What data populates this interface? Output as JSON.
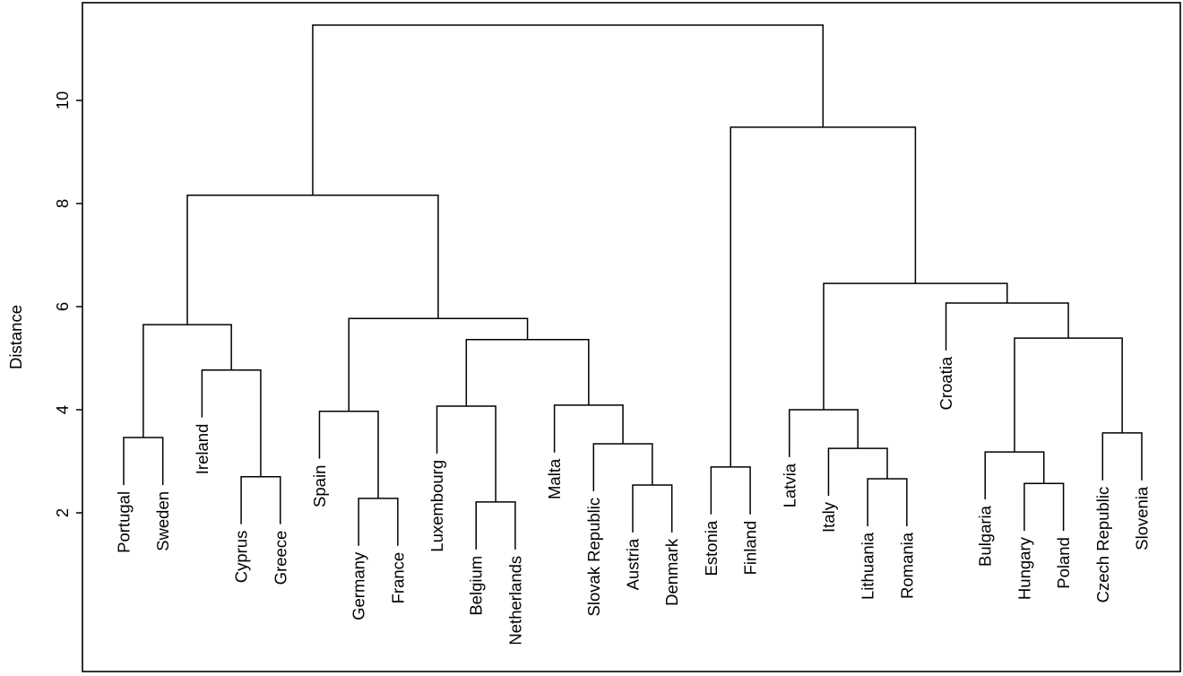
{
  "chart_data": {
    "type": "dendrogram",
    "title": "",
    "xlabel": "",
    "ylabel": "Distance",
    "yticks": [
      2,
      4,
      6,
      8,
      10
    ],
    "ylim": [
      0,
      11.9
    ],
    "grid": false,
    "line_color": "#000000",
    "background_color": "#ffffff",
    "hang": 0.92,
    "leaf_order": [
      "Portugal",
      "Sweden",
      "Ireland",
      "Cyprus",
      "Greece",
      "Spain",
      "Germany",
      "France",
      "Luxembourg",
      "Belgium",
      "Netherlands",
      "Malta",
      "Slovak Republic",
      "Austria",
      "Denmark",
      "Estonia",
      "Finland",
      "Latvia",
      "Italy",
      "Lithuania",
      "Romania",
      "Croatia",
      "Bulgaria",
      "Hungary",
      "Poland",
      "Czech Republic",
      "Slovenia"
    ],
    "tree": {
      "height": 11.46,
      "children": [
        {
          "height": 8.16,
          "children": [
            {
              "height": 5.65,
              "children": [
                {
                  "height": 3.46,
                  "children": [
                    {
                      "leaf": "Portugal"
                    },
                    {
                      "leaf": "Sweden"
                    }
                  ]
                },
                {
                  "height": 4.77,
                  "children": [
                    {
                      "leaf": "Ireland"
                    },
                    {
                      "height": 2.7,
                      "children": [
                        {
                          "leaf": "Cyprus"
                        },
                        {
                          "leaf": "Greece"
                        }
                      ]
                    }
                  ]
                }
              ]
            },
            {
              "height": 5.77,
              "children": [
                {
                  "height": 3.97,
                  "children": [
                    {
                      "leaf": "Spain"
                    },
                    {
                      "height": 2.28,
                      "children": [
                        {
                          "leaf": "Germany"
                        },
                        {
                          "leaf": "France"
                        }
                      ]
                    }
                  ]
                },
                {
                  "height": 5.36,
                  "children": [
                    {
                      "height": 4.07,
                      "children": [
                        {
                          "leaf": "Luxembourg"
                        },
                        {
                          "height": 2.21,
                          "children": [
                            {
                              "leaf": "Belgium"
                            },
                            {
                              "leaf": "Netherlands"
                            }
                          ]
                        }
                      ]
                    },
                    {
                      "height": 4.09,
                      "children": [
                        {
                          "leaf": "Malta"
                        },
                        {
                          "height": 3.34,
                          "children": [
                            {
                              "leaf": "Slovak Republic"
                            },
                            {
                              "height": 2.54,
                              "children": [
                                {
                                  "leaf": "Austria"
                                },
                                {
                                  "leaf": "Denmark"
                                }
                              ]
                            }
                          ]
                        }
                      ]
                    }
                  ]
                }
              ]
            }
          ]
        },
        {
          "height": 9.48,
          "children": [
            {
              "height": 2.89,
              "children": [
                {
                  "leaf": "Estonia"
                },
                {
                  "leaf": "Finland"
                }
              ]
            },
            {
              "height": 6.45,
              "children": [
                {
                  "height": 4.0,
                  "children": [
                    {
                      "leaf": "Latvia"
                    },
                    {
                      "height": 3.25,
                      "children": [
                        {
                          "leaf": "Italy"
                        },
                        {
                          "height": 2.66,
                          "children": [
                            {
                              "leaf": "Lithuania"
                            },
                            {
                              "leaf": "Romania"
                            }
                          ]
                        }
                      ]
                    }
                  ]
                },
                {
                  "height": 6.07,
                  "children": [
                    {
                      "leaf": "Croatia"
                    },
                    {
                      "height": 5.39,
                      "children": [
                        {
                          "height": 3.18,
                          "children": [
                            {
                              "leaf": "Bulgaria"
                            },
                            {
                              "height": 2.57,
                              "children": [
                                {
                                  "leaf": "Hungary"
                                },
                                {
                                  "leaf": "Poland"
                                }
                              ]
                            }
                          ]
                        },
                        {
                          "height": 3.55,
                          "children": [
                            {
                              "leaf": "Czech Republic"
                            },
                            {
                              "leaf": "Slovenia"
                            }
                          ]
                        }
                      ]
                    }
                  ]
                }
              ]
            }
          ]
        }
      ]
    }
  }
}
